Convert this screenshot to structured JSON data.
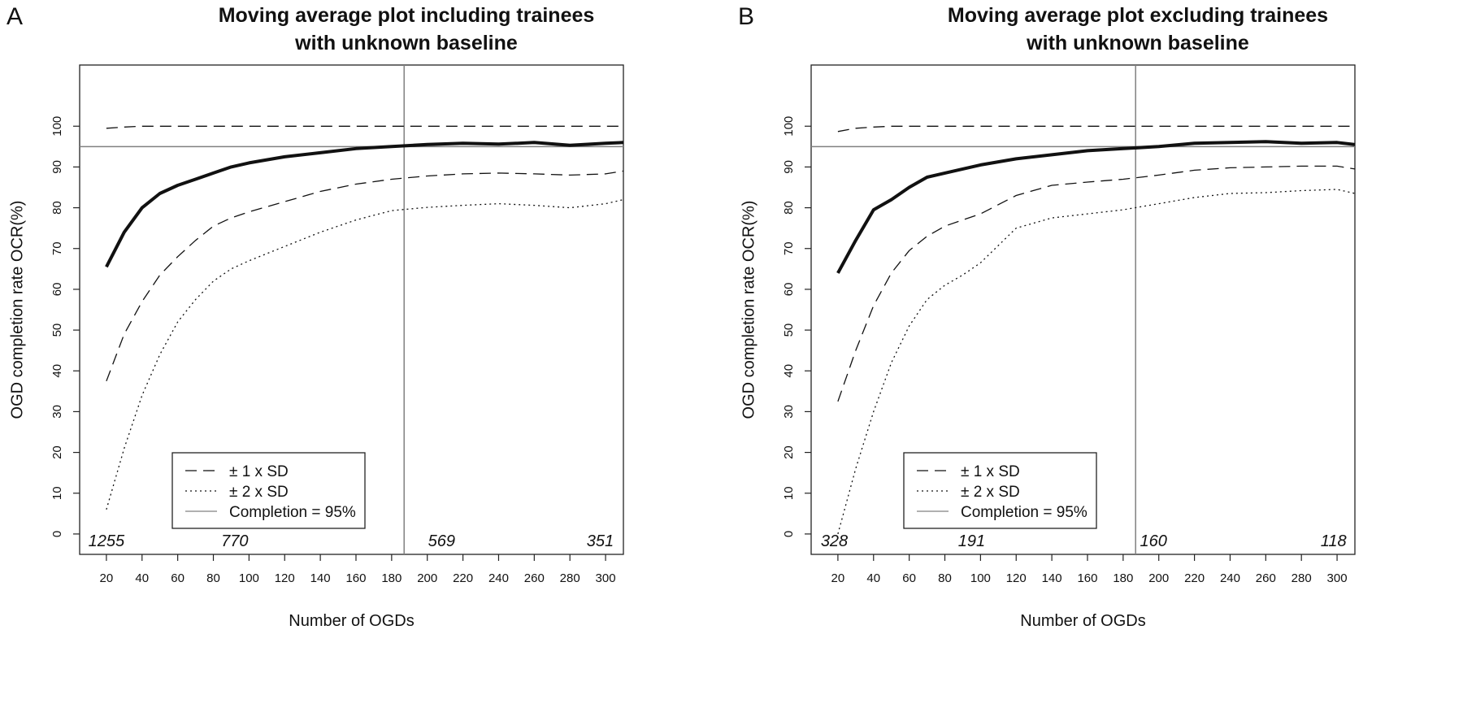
{
  "panels": [
    {
      "letter": "A",
      "title_line1": "Moving average plot including trainees",
      "title_line2": "with unknown baseline"
    },
    {
      "letter": "B",
      "title_line1": "Moving average plot excluding trainees",
      "title_line2": "with unknown baseline"
    }
  ],
  "chart_data": [
    {
      "type": "line",
      "title": "Moving average plot including trainees with unknown baseline",
      "xlabel": "Number of OGDs",
      "ylabel": "OGD completion rate OCR(%)",
      "xlim": [
        5,
        310
      ],
      "ylim": [
        -5,
        115
      ],
      "xticks": [
        20,
        40,
        60,
        80,
        100,
        120,
        140,
        160,
        180,
        200,
        220,
        240,
        260,
        280,
        300
      ],
      "yticks": [
        0,
        10,
        20,
        30,
        40,
        50,
        60,
        70,
        80,
        90,
        100
      ],
      "grid": false,
      "legend_position": "bottom-center",
      "reference_lines": {
        "horizontal_y": 95,
        "vertical_x": 187
      },
      "count_annotations": [
        {
          "x": 20,
          "text": "1255"
        },
        {
          "x": 92,
          "text": "770"
        },
        {
          "x": 208,
          "text": "569"
        },
        {
          "x": 297,
          "text": "351"
        }
      ],
      "x": [
        20,
        30,
        40,
        50,
        60,
        70,
        80,
        90,
        100,
        120,
        140,
        160,
        180,
        200,
        220,
        240,
        260,
        280,
        300,
        310
      ],
      "series": [
        {
          "name": "Moving average",
          "style": "solid-bold",
          "values": [
            65.5,
            74,
            80,
            83.5,
            85.5,
            87,
            88.5,
            90,
            91,
            92.5,
            93.5,
            94.5,
            95,
            95.5,
            95.8,
            95.6,
            96,
            95.3,
            95.8,
            96
          ]
        },
        {
          "name": "± 1 x SD",
          "style": "dashed",
          "group": "upper",
          "values": [
            99.5,
            99.8,
            100,
            100,
            100,
            100,
            100,
            100,
            100,
            100,
            100,
            100,
            100,
            100,
            100,
            100,
            100,
            100,
            100,
            100
          ]
        },
        {
          "name": "± 1 x SD",
          "style": "dashed",
          "group": "lower",
          "values": [
            37.5,
            49,
            57,
            63.5,
            68,
            72,
            75.5,
            77.5,
            79,
            81.5,
            84,
            85.8,
            87,
            87.8,
            88.3,
            88.5,
            88.3,
            88,
            88.3,
            89
          ]
        },
        {
          "name": "± 2 x SD",
          "style": "dotted",
          "values": [
            6,
            21,
            34,
            44,
            52,
            57.5,
            62,
            65,
            67,
            70.5,
            74,
            77,
            79.3,
            80.1,
            80.6,
            81,
            80.6,
            80,
            81,
            82
          ]
        }
      ]
    },
    {
      "type": "line",
      "title": "Moving average plot excluding trainees with unknown baseline",
      "xlabel": "Number of OGDs",
      "ylabel": "OGD completion rate OCR(%)",
      "xlim": [
        5,
        310
      ],
      "ylim": [
        -5,
        115
      ],
      "xticks": [
        20,
        40,
        60,
        80,
        100,
        120,
        140,
        160,
        180,
        200,
        220,
        240,
        260,
        280,
        300
      ],
      "yticks": [
        0,
        10,
        20,
        30,
        40,
        50,
        60,
        70,
        80,
        90,
        100
      ],
      "grid": false,
      "legend_position": "bottom-center",
      "reference_lines": {
        "horizontal_y": 95,
        "vertical_x": 187
      },
      "count_annotations": [
        {
          "x": 18,
          "text": "328"
        },
        {
          "x": 95,
          "text": "191"
        },
        {
          "x": 197,
          "text": "160"
        },
        {
          "x": 298,
          "text": "118"
        }
      ],
      "x": [
        20,
        30,
        40,
        50,
        60,
        70,
        80,
        90,
        100,
        120,
        140,
        160,
        180,
        200,
        220,
        240,
        260,
        280,
        300,
        310
      ],
      "series": [
        {
          "name": "Moving average",
          "style": "solid-bold",
          "values": [
            64,
            72,
            79.5,
            82,
            85,
            87.5,
            88.5,
            89.5,
            90.5,
            92,
            93,
            94,
            94.5,
            95,
            95.8,
            96,
            96.2,
            95.8,
            96,
            95.5
          ]
        },
        {
          "name": "± 1 x SD",
          "style": "dashed",
          "group": "upper",
          "values": [
            98.7,
            99.5,
            99.8,
            100,
            100,
            100,
            100,
            100,
            100,
            100,
            100,
            100,
            100,
            100,
            100,
            100,
            100,
            100,
            100,
            100
          ]
        },
        {
          "name": "± 1 x SD",
          "style": "dashed",
          "group": "lower",
          "values": [
            32.5,
            45,
            56,
            64,
            69.5,
            73,
            75.5,
            77,
            78.5,
            83,
            85.5,
            86.3,
            87,
            88,
            89.2,
            89.8,
            90,
            90.2,
            90.2,
            89.5
          ]
        },
        {
          "name": "± 2 x SD",
          "style": "dotted",
          "values": [
            0,
            16,
            30,
            42,
            51,
            57.5,
            61,
            63.5,
            66.5,
            75,
            77.5,
            78.5,
            79.5,
            81,
            82.5,
            83.5,
            83.7,
            84.2,
            84.5,
            83.5
          ]
        }
      ]
    }
  ],
  "legend": [
    {
      "label": "± 1 x SD",
      "style": "dashed"
    },
    {
      "label": "± 2 x SD",
      "style": "dotted"
    },
    {
      "label": "Completion = 95%",
      "style": "solid-thin"
    }
  ],
  "colors": {
    "line": "#111111",
    "reference": "#808080",
    "frame": "#222222"
  }
}
